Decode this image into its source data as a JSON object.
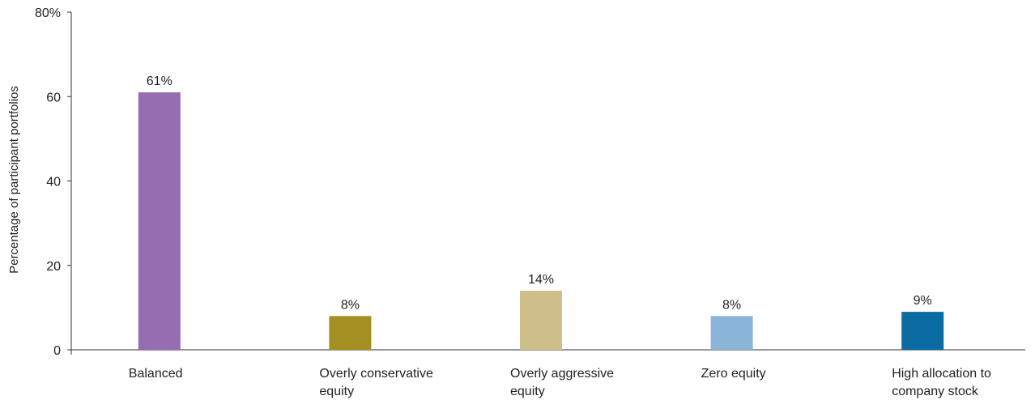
{
  "chart_data": {
    "type": "bar",
    "ylabel": "Percentage of participant portfolios",
    "xlabel": "",
    "ylim": [
      0,
      80
    ],
    "y_ticks": [
      0,
      20,
      40,
      60,
      80
    ],
    "y_tick_labels": [
      "0",
      "20",
      "40",
      "60",
      "80%"
    ],
    "grid": false,
    "categories": [
      [
        "Balanced"
      ],
      [
        "Overly conservative",
        "equity"
      ],
      [
        "Overly aggressive",
        "equity"
      ],
      [
        "Zero equity"
      ],
      [
        "High allocation to",
        "company stock"
      ]
    ],
    "values": [
      61,
      8,
      14,
      8,
      9
    ],
    "value_labels": [
      "61%",
      "8%",
      "14%",
      "8%",
      "9%"
    ],
    "colors": [
      "#956db0",
      "#a38f22",
      "#cdbe8a",
      "#8ab4d8",
      "#0a6ca3"
    ]
  }
}
